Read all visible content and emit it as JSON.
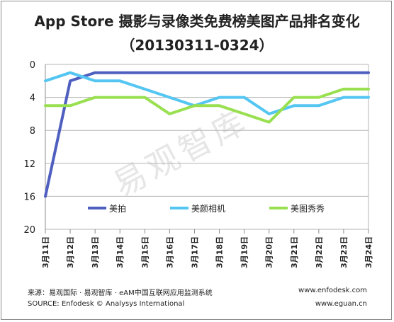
{
  "chart_data": {
    "type": "line",
    "title": "App Store 摄影与录像类免费榜美图产品排名变化",
    "subtitle": "（20130311-0324）",
    "x": [
      "3月11日",
      "3月12日",
      "3月13日",
      "3月14日",
      "3月15日",
      "3月16日",
      "3月17日",
      "3月18日",
      "3月19日",
      "3月20日",
      "3月21日",
      "3月22日",
      "3月23日",
      "3月24日"
    ],
    "ylim": [
      20,
      0
    ],
    "y_ticks": [
      "0",
      "4",
      "8",
      "12",
      "16",
      "20"
    ],
    "y_tick_values": [
      0,
      4,
      8,
      12,
      16,
      20
    ],
    "grid": true,
    "legend_position": "inside-bottom",
    "series": [
      {
        "name": "美拍",
        "color": "#4f5fbf",
        "values": [
          16,
          2,
          1,
          1,
          1,
          1,
          1,
          1,
          1,
          1,
          1,
          1,
          1,
          1
        ]
      },
      {
        "name": "美颜相机",
        "color": "#55c6f2",
        "values": [
          2,
          1,
          2,
          2,
          3,
          4,
          5,
          4,
          4,
          6,
          5,
          5,
          4,
          4
        ]
      },
      {
        "name": "美图秀秀",
        "color": "#99e050",
        "values": [
          5,
          5,
          4,
          4,
          4,
          6,
          5,
          5,
          6,
          7,
          4,
          4,
          3,
          3
        ]
      }
    ]
  },
  "watermark": "易观智库",
  "footer": {
    "source_cn": "来源：易观国际 · 易观智库 · eAM中国互联网应用监测系统",
    "source_en": "SOURCE: Enfodesk © Analysys International",
    "url1": "www.enfodesk.com",
    "url2": "www.eguan.cn"
  }
}
